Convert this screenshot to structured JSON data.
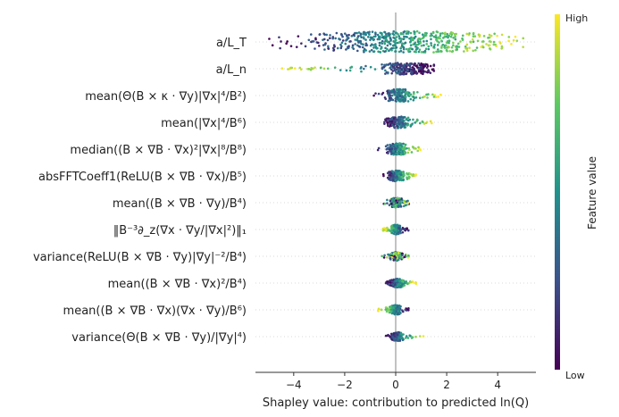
{
  "chart_data": {
    "type": "scatter",
    "subtype": "shap-beeswarm",
    "xlabel": "Shapley value: contribution to predicted ln(Q)",
    "xlim": [
      -5.5,
      5.5
    ],
    "xticks": [
      "−4",
      "−2",
      "0",
      "2",
      "4"
    ],
    "xtick_values": [
      -4,
      -2,
      0,
      2,
      4
    ],
    "colorbar": {
      "label": "Feature value",
      "high_label": "High",
      "low_label": "Low",
      "colors": [
        "#440154",
        "#3b528b",
        "#21918c",
        "#5ec962",
        "#fde725"
      ]
    },
    "features": [
      {
        "label": "a/L_T",
        "range": [
          -5.0,
          5.0
        ],
        "spread": [
          -2.6,
          3.4
        ],
        "width": 1.0,
        "pattern": "increasing",
        "mode": 0.0
      },
      {
        "label": "a/L_n",
        "range": [
          -4.5,
          1.5
        ],
        "spread": [
          -0.5,
          1.2
        ],
        "width": 0.55,
        "pattern": "decreasing",
        "mode": 0.6
      },
      {
        "label": "mean(Θ(B × κ · ∇y)|∇x|⁴/B²)",
        "range": [
          -1.0,
          1.8
        ],
        "spread": [
          -0.3,
          0.6
        ],
        "width": 0.6,
        "pattern": "increasing",
        "mode": 0.1
      },
      {
        "label": "mean(|∇x|⁴/B⁶)",
        "range": [
          -0.5,
          1.5
        ],
        "spread": [
          -0.2,
          0.5
        ],
        "width": 0.55,
        "pattern": "increasing",
        "mode": 0.0
      },
      {
        "label": "median((B × ∇B · ∇x)²|∇x|⁸/B⁸)",
        "range": [
          -0.7,
          1.0
        ],
        "spread": [
          -0.2,
          0.4
        ],
        "width": 0.55,
        "pattern": "increasing",
        "mode": 0.0
      },
      {
        "label": "absFFTCoeff1(ReLU(B × ∇B · ∇x)/B⁵)",
        "range": [
          -0.5,
          0.8
        ],
        "spread": [
          -0.2,
          0.3
        ],
        "width": 0.5,
        "pattern": "increasing",
        "mode": 0.0
      },
      {
        "label": "mean((B × ∇B · ∇y)/B⁴)",
        "range": [
          -0.6,
          0.6
        ],
        "spread": [
          -0.2,
          0.25
        ],
        "width": 0.45,
        "pattern": "mixed",
        "mode": 0.0
      },
      {
        "label": "‖B⁻³∂_z(∇x · ∇y/|∇x|²)‖₁",
        "range": [
          -0.5,
          0.5
        ],
        "spread": [
          -0.15,
          0.2
        ],
        "width": 0.45,
        "pattern": "decreasing",
        "mode": 0.0
      },
      {
        "label": "variance(ReLU(B × ∇B · ∇y)|∇y|⁻²/B⁴)",
        "range": [
          -0.6,
          0.6
        ],
        "spread": [
          -0.15,
          0.2
        ],
        "width": 0.4,
        "pattern": "mixed",
        "mode": 0.0
      },
      {
        "label": "mean((B × ∇B · ∇x)²/B⁴)",
        "range": [
          -0.4,
          0.8
        ],
        "spread": [
          -0.1,
          0.3
        ],
        "width": 0.4,
        "pattern": "increasing",
        "mode": 0.0
      },
      {
        "label": "mean((B × ∇B · ∇x)(∇x · ∇y)/B⁶)",
        "range": [
          -0.7,
          0.6
        ],
        "spread": [
          -0.2,
          0.2
        ],
        "width": 0.45,
        "pattern": "decreasing",
        "mode": 0.0
      },
      {
        "label": "variance(Θ(B × ∇B · ∇y)/|∇y|⁴)",
        "range": [
          -0.4,
          1.1
        ],
        "spread": [
          -0.1,
          0.3
        ],
        "width": 0.4,
        "pattern": "increasing",
        "mode": 0.0
      }
    ]
  }
}
